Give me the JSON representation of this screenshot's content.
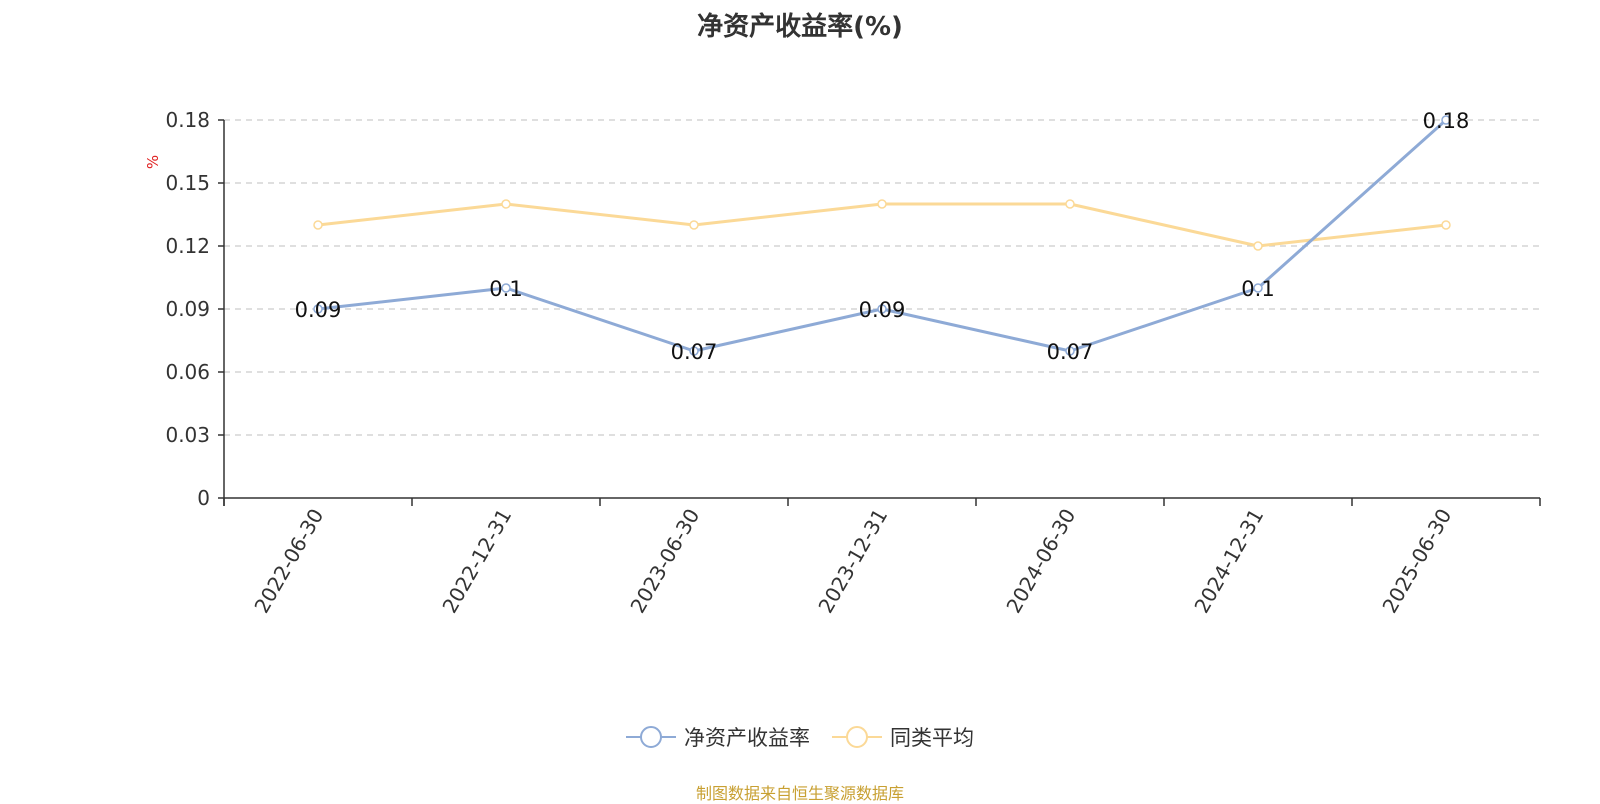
{
  "chart_data": {
    "type": "line",
    "title": "净资产收益率(%)",
    "ylabel": "%",
    "xlabel": "",
    "categories": [
      "2022-06-30",
      "2022-12-31",
      "2023-06-30",
      "2023-12-31",
      "2024-06-30",
      "2024-12-31",
      "2025-06-30"
    ],
    "series": [
      {
        "name": "净资产收益率",
        "values": [
          0.09,
          0.1,
          0.07,
          0.09,
          0.07,
          0.1,
          0.18
        ],
        "labels": [
          "0.09",
          "0.1",
          "0.07",
          "0.09",
          "0.07",
          "0.1",
          "0.18"
        ],
        "color": "#8eaad6"
      },
      {
        "name": "同类平均",
        "values": [
          0.13,
          0.14,
          0.13,
          0.14,
          0.14,
          0.12,
          0.13
        ],
        "color": "#fbd997"
      }
    ],
    "ylim": [
      0,
      0.18
    ],
    "yticks": [
      "0",
      "0.03",
      "0.06",
      "0.09",
      "0.12",
      "0.15",
      "0.18"
    ],
    "grid": true,
    "legend_position": "bottom-center"
  },
  "source_note": "制图数据来自恒生聚源数据库",
  "colors": {
    "ylabel": "#e02020",
    "source": "#c8a032",
    "axis": "#333333",
    "grid": "#cccccc"
  }
}
